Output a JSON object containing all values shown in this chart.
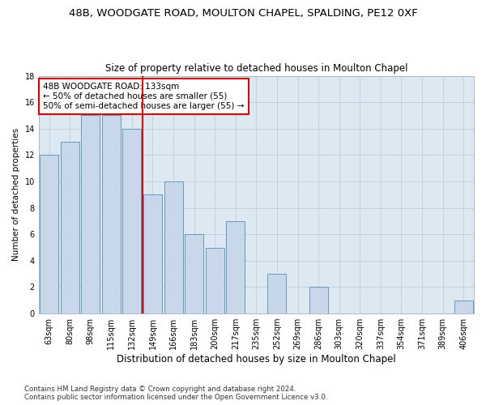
{
  "title": "48B, WOODGATE ROAD, MOULTON CHAPEL, SPALDING, PE12 0XF",
  "subtitle": "Size of property relative to detached houses in Moulton Chapel",
  "xlabel": "Distribution of detached houses by size in Moulton Chapel",
  "ylabel": "Number of detached properties",
  "categories": [
    "63sqm",
    "80sqm",
    "98sqm",
    "115sqm",
    "132sqm",
    "149sqm",
    "166sqm",
    "183sqm",
    "200sqm",
    "217sqm",
    "235sqm",
    "252sqm",
    "269sqm",
    "286sqm",
    "303sqm",
    "320sqm",
    "337sqm",
    "354sqm",
    "371sqm",
    "389sqm",
    "406sqm"
  ],
  "values": [
    12,
    13,
    15,
    15,
    14,
    9,
    10,
    6,
    5,
    7,
    0,
    3,
    0,
    2,
    0,
    0,
    0,
    0,
    0,
    0,
    1
  ],
  "bar_color": "#c8d8ea",
  "bar_edge_color": "#6699bb",
  "highlight_line_color": "#cc0000",
  "annotation_text": "48B WOODGATE ROAD: 133sqm\n← 50% of detached houses are smaller (55)\n50% of semi-detached houses are larger (55) →",
  "annotation_box_color": "#ffffff",
  "annotation_box_edge_color": "#cc0000",
  "ylim": [
    0,
    18
  ],
  "yticks": [
    0,
    2,
    4,
    6,
    8,
    10,
    12,
    14,
    16,
    18
  ],
  "grid_color": "#c0ccdd",
  "background_color": "#dce8f2",
  "footer_text": "Contains HM Land Registry data © Crown copyright and database right 2024.\nContains public sector information licensed under the Open Government Licence v3.0.",
  "title_fontsize": 9.5,
  "subtitle_fontsize": 8.5,
  "xlabel_fontsize": 8.5,
  "ylabel_fontsize": 7.5,
  "tick_fontsize": 7,
  "annotation_fontsize": 7.5,
  "footer_fontsize": 6.2
}
